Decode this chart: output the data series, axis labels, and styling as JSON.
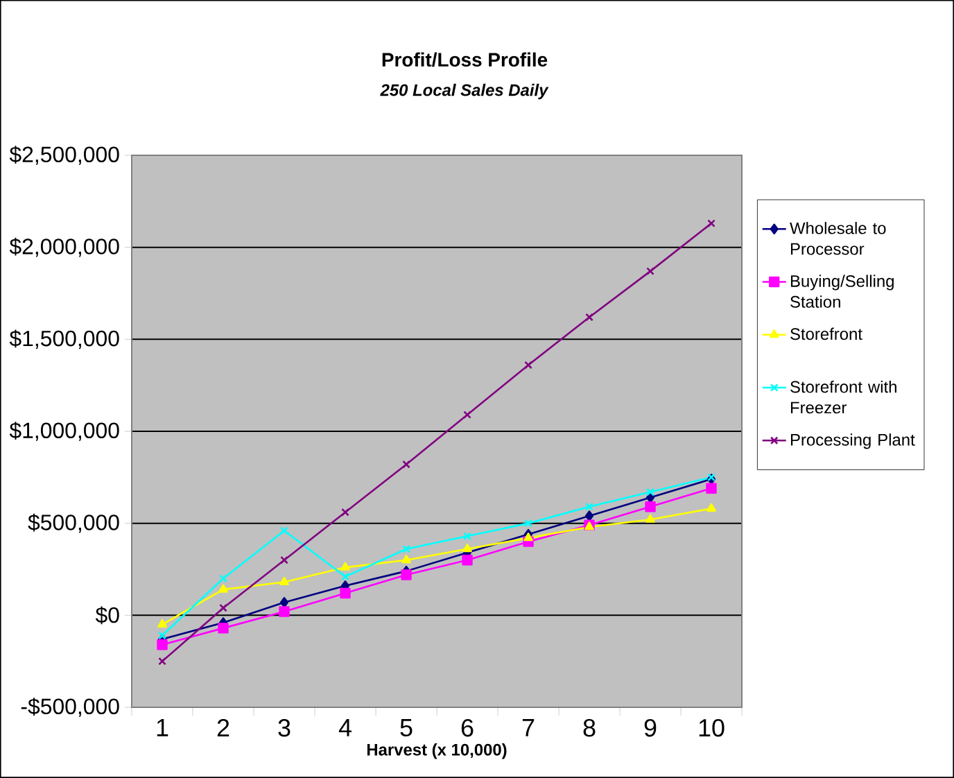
{
  "chart_data": {
    "type": "line",
    "title": "Profit/Loss Profile",
    "subtitle": "*250 Local Sales Daily*",
    "xlabel": "Harvest (x 10,000)",
    "categories": [
      "1",
      "2",
      "3",
      "4",
      "5",
      "6",
      "7",
      "8",
      "9",
      "10"
    ],
    "series": [
      {
        "name": "Wholesale to Processor",
        "color": "#000080",
        "marker": "diamond",
        "values": [
          -130000,
          -40000,
          70000,
          160000,
          240000,
          340000,
          440000,
          540000,
          640000,
          740000
        ]
      },
      {
        "name": "Buying/Selling Station",
        "color": "#ff00ff",
        "marker": "square",
        "values": [
          -160000,
          -70000,
          20000,
          120000,
          220000,
          300000,
          400000,
          490000,
          590000,
          690000
        ]
      },
      {
        "name": "Storefront",
        "color": "#ffff00",
        "marker": "triangle",
        "values": [
          -50000,
          140000,
          180000,
          260000,
          300000,
          360000,
          420000,
          480000,
          520000,
          580000
        ]
      },
      {
        "name": "Storefront with Freezer",
        "color": "#00ffff",
        "marker": "cross",
        "values": [
          -110000,
          200000,
          460000,
          210000,
          360000,
          430000,
          500000,
          590000,
          670000,
          750000
        ]
      },
      {
        "name": "Processing Plant",
        "color": "#800080",
        "marker": "cross",
        "values": [
          -250000,
          40000,
          300000,
          560000,
          820000,
          1090000,
          1360000,
          1620000,
          1870000,
          2130000
        ]
      }
    ],
    "ylim": [
      -500000,
      2500000
    ],
    "yticks": [
      {
        "value": -500000,
        "label": "-$500,000"
      },
      {
        "value": 0,
        "label": "$0"
      },
      {
        "value": 500000,
        "label": "$500,000"
      },
      {
        "value": 1000000,
        "label": "$1,000,000"
      },
      {
        "value": 1500000,
        "label": "$1,500,000"
      },
      {
        "value": 2000000,
        "label": "$2,000,000"
      },
      {
        "value": 2500000,
        "label": "$2,500,000"
      }
    ],
    "grid": "y",
    "legend": "right",
    "line_style": "solid"
  }
}
